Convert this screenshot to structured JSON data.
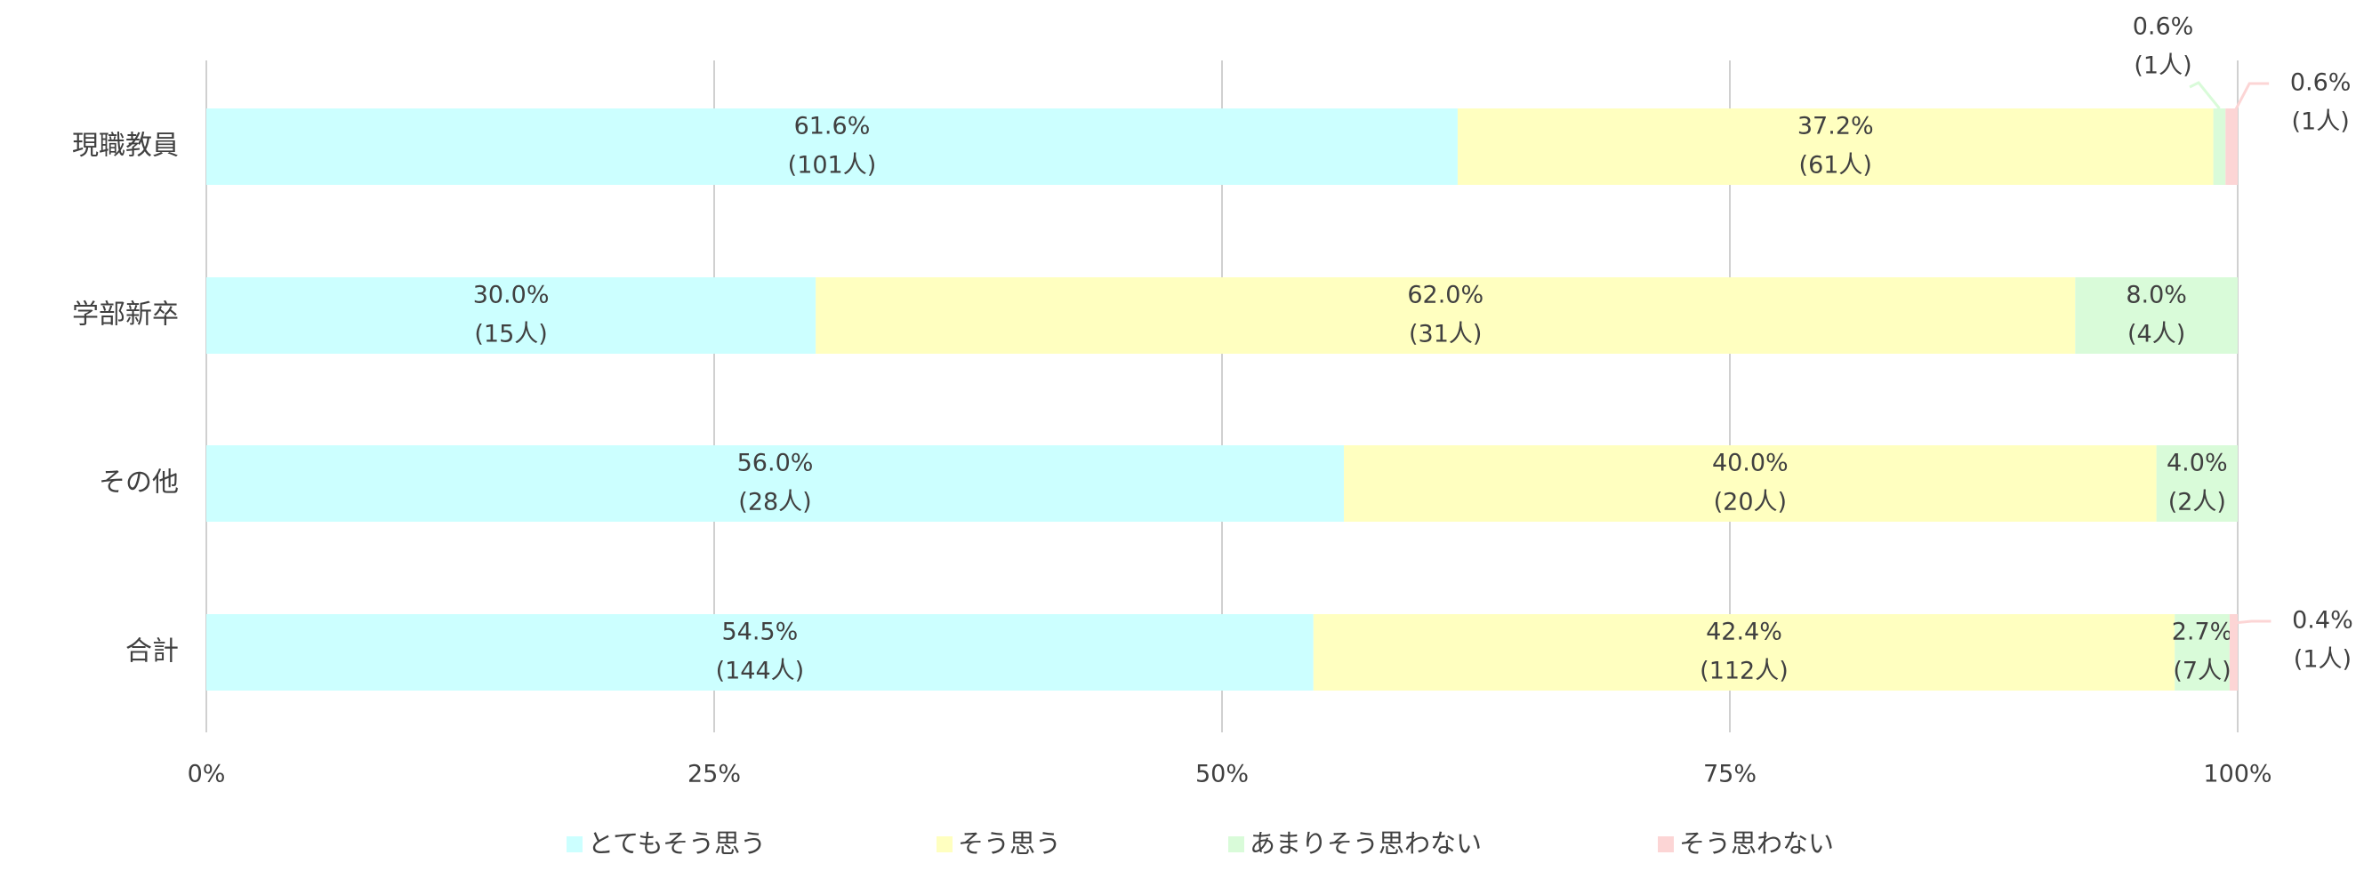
{
  "chart_data": {
    "type": "stacked_bar_horizontal",
    "categories": [
      "現職教員",
      "学部新卒",
      "その他",
      "合計"
    ],
    "series": [
      {
        "name": "とてもそう思う",
        "color": "#ccffff",
        "values": [
          61.6,
          30.0,
          56.0,
          54.5
        ],
        "value_labels": [
          "61.6%",
          "30.0%",
          "56.0%",
          "54.5%"
        ],
        "count_labels": [
          "(101人)",
          "(15人)",
          "(28人)",
          "(144人)"
        ]
      },
      {
        "name": "そう思う",
        "color": "#ffffc0",
        "values": [
          37.2,
          62.0,
          40.0,
          42.4
        ],
        "value_labels": [
          "37.2%",
          "62.0%",
          "40.0%",
          "42.4%"
        ],
        "count_labels": [
          "(61人)",
          "(31人)",
          "(20人)",
          "(112人)"
        ]
      },
      {
        "name": "あまりそう思わない",
        "color": "#d9fbd9",
        "values": [
          0.6,
          8.0,
          4.0,
          2.7
        ],
        "value_labels": [
          "0.6%",
          "8.0%",
          "4.0%",
          "2.7%"
        ],
        "count_labels": [
          "(1人)",
          "(4人)",
          "(2人)",
          "(7人)"
        ]
      },
      {
        "name": "そう思わない",
        "color": "#fcd5d5",
        "values": [
          0.6,
          null,
          null,
          0.4
        ],
        "value_labels": [
          "0.6%",
          null,
          null,
          "0.4%"
        ],
        "count_labels": [
          "(1人)",
          null,
          null,
          "(1人)"
        ]
      }
    ],
    "xlim": [
      0,
      100
    ],
    "xticks": [
      {
        "value": 0,
        "label": "0%"
      },
      {
        "value": 25,
        "label": "25%"
      },
      {
        "value": 50,
        "label": "50%"
      },
      {
        "value": 75,
        "label": "75%"
      },
      {
        "value": 100,
        "label": "100%"
      }
    ],
    "grid": true,
    "legend": "bottom"
  }
}
